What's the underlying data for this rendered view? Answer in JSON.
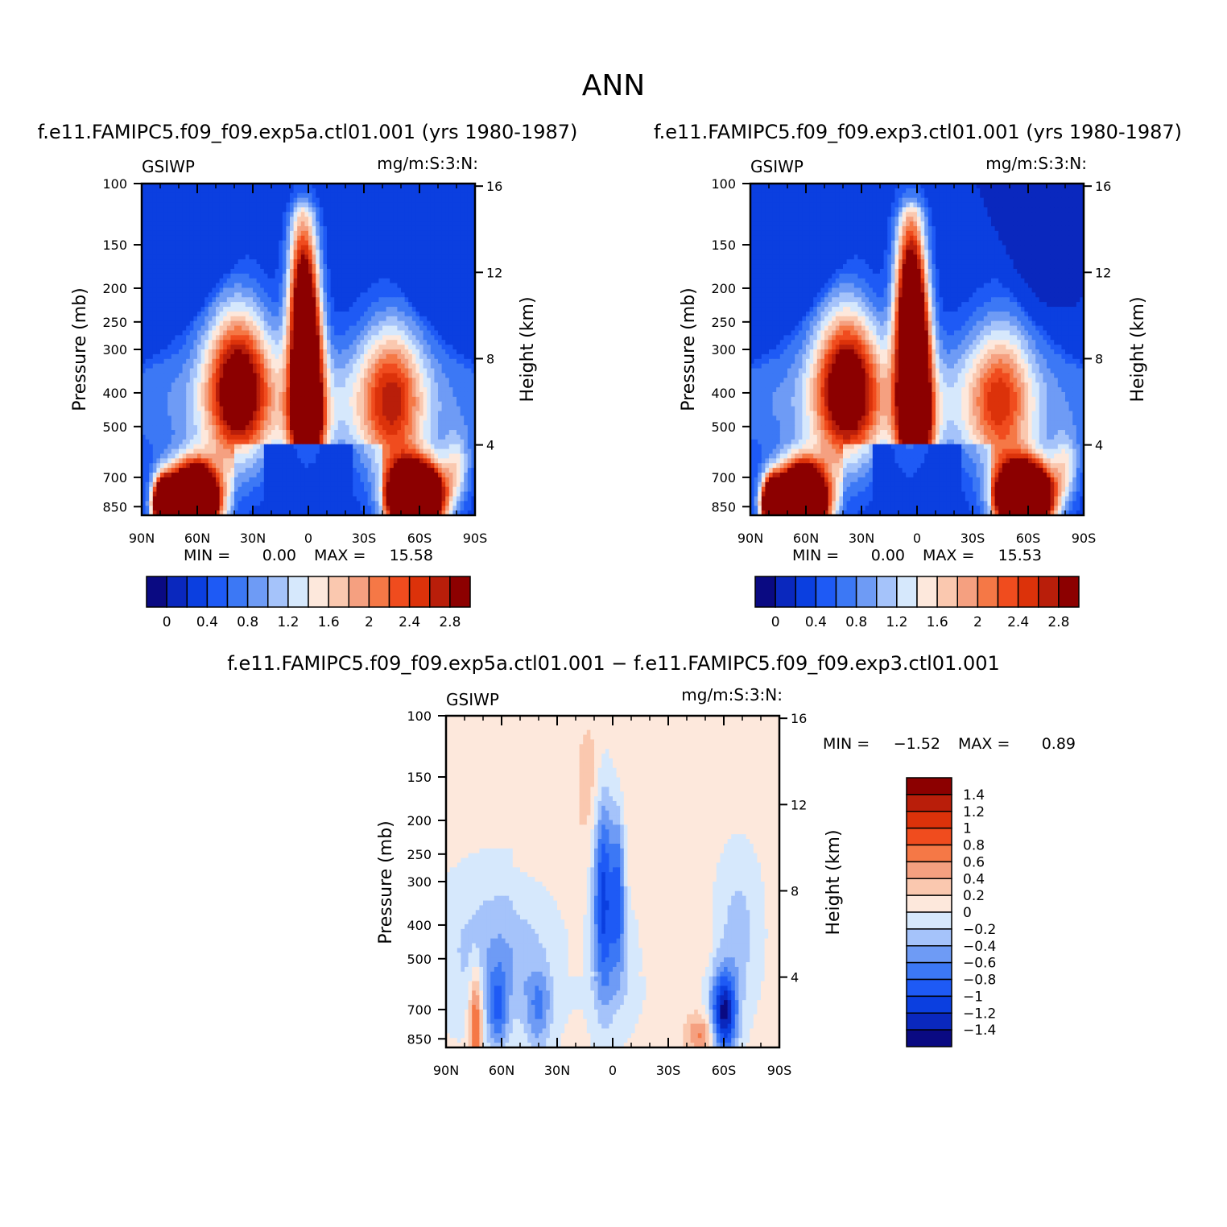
{
  "page": {
    "title": "ANN"
  },
  "palettes": {
    "abs": [
      "#0a0a82",
      "#0a28be",
      "#0b3fe0",
      "#1e5af5",
      "#3c78f5",
      "#6e9bf5",
      "#a5c3fa",
      "#d6e8fc",
      "#fde8dc",
      "#fac8af",
      "#f5a080",
      "#f57846",
      "#f04c1e",
      "#dc320a",
      "#b91e0a",
      "#8c0000"
    ],
    "diff": [
      "#0a0a82",
      "#0a28be",
      "#0b3fe0",
      "#1e5af5",
      "#3c78f5",
      "#6e9bf5",
      "#a5c3fa",
      "#d6e8fc",
      "#fde8dc",
      "#fac8af",
      "#f5a080",
      "#f57846",
      "#f04c1e",
      "#dc320a",
      "#b91e0a",
      "#8c0000"
    ]
  },
  "chart_data": [
    {
      "type": "heatmap",
      "id": "top-left",
      "title": "f.e11.FAMIPC5.f09_f09.exp5a.ctl01.001 (yrs 1980-1987)",
      "left_label": "GSIWP",
      "right_label": "mg/m:S:3:N:",
      "xlabel": "",
      "ylabel": "Pressure (mb)",
      "y2label": "Height (km)",
      "x_ticks": [
        "90N",
        "60N",
        "30N",
        "0",
        "30S",
        "60S",
        "90S"
      ],
      "y_ticks": [
        "100",
        "150",
        "200",
        "250",
        "300",
        "400",
        "500",
        "700",
        "850"
      ],
      "y2_ticks": [
        "16",
        "12",
        "8",
        "4"
      ],
      "xlim": [
        90,
        -90
      ],
      "ylim": [
        100,
        900
      ],
      "y_scale": "log",
      "min_label": "MIN =",
      "min_value": "0.00",
      "max_label": "MAX =",
      "max_value": "15.58",
      "colorbar_labels": [
        "0",
        "0.4",
        "0.8",
        "1.2",
        "1.6",
        "2",
        "2.4",
        "2.8"
      ],
      "levels": [
        -0.2,
        0,
        0.2,
        0.4,
        0.6,
        0.8,
        1.0,
        1.2,
        1.4,
        1.6,
        1.8,
        2.0,
        2.2,
        2.4,
        2.6,
        2.8
      ]
    },
    {
      "type": "heatmap",
      "id": "top-right",
      "title": "f.e11.FAMIPC5.f09_f09.exp3.ctl01.001 (yrs 1980-1987)",
      "left_label": "GSIWP",
      "right_label": "mg/m:S:3:N:",
      "xlabel": "",
      "ylabel": "Pressure (mb)",
      "y2label": "Height (km)",
      "x_ticks": [
        "90N",
        "60N",
        "30N",
        "0",
        "30S",
        "60S",
        "90S"
      ],
      "y_ticks": [
        "100",
        "150",
        "200",
        "250",
        "300",
        "400",
        "500",
        "700",
        "850"
      ],
      "y2_ticks": [
        "16",
        "12",
        "8",
        "4"
      ],
      "xlim": [
        90,
        -90
      ],
      "ylim": [
        100,
        900
      ],
      "y_scale": "log",
      "min_label": "MIN =",
      "min_value": "0.00",
      "max_label": "MAX =",
      "max_value": "15.53",
      "colorbar_labels": [
        "0",
        "0.4",
        "0.8",
        "1.2",
        "1.6",
        "2",
        "2.4",
        "2.8"
      ],
      "levels": [
        -0.2,
        0,
        0.2,
        0.4,
        0.6,
        0.8,
        1.0,
        1.2,
        1.4,
        1.6,
        1.8,
        2.0,
        2.2,
        2.4,
        2.6,
        2.8
      ]
    },
    {
      "type": "heatmap",
      "id": "bottom-diff",
      "title": "f.e11.FAMIPC5.f09_f09.exp5a.ctl01.001 − f.e11.FAMIPC5.f09_f09.exp3.ctl01.001",
      "left_label": "GSIWP",
      "right_label": "mg/m:S:3:N:",
      "xlabel": "",
      "ylabel": "Pressure (mb)",
      "y2label": "Height (km)",
      "x_ticks": [
        "90N",
        "60N",
        "30N",
        "0",
        "30S",
        "60S",
        "90S"
      ],
      "y_ticks": [
        "100",
        "150",
        "200",
        "250",
        "300",
        "400",
        "500",
        "700",
        "850"
      ],
      "y2_ticks": [
        "16",
        "12",
        "8",
        "4"
      ],
      "xlim": [
        90,
        -90
      ],
      "ylim": [
        100,
        900
      ],
      "y_scale": "log",
      "min_label": "MIN =",
      "min_value": "−1.52",
      "max_label": "MAX =",
      "max_value": "0.89",
      "colorbar_labels": [
        "1.4",
        "1.2",
        "1",
        "0.8",
        "0.6",
        "0.4",
        "0.2",
        "0",
        "−0.2",
        "−0.4",
        "−0.6",
        "−0.8",
        "−1",
        "−1.2",
        "−1.4"
      ],
      "levels": [
        -1.4,
        -1.2,
        -1.0,
        -0.8,
        -0.6,
        -0.4,
        -0.2,
        0,
        0.2,
        0.4,
        0.6,
        0.8,
        1.0,
        1.2,
        1.4
      ]
    }
  ]
}
